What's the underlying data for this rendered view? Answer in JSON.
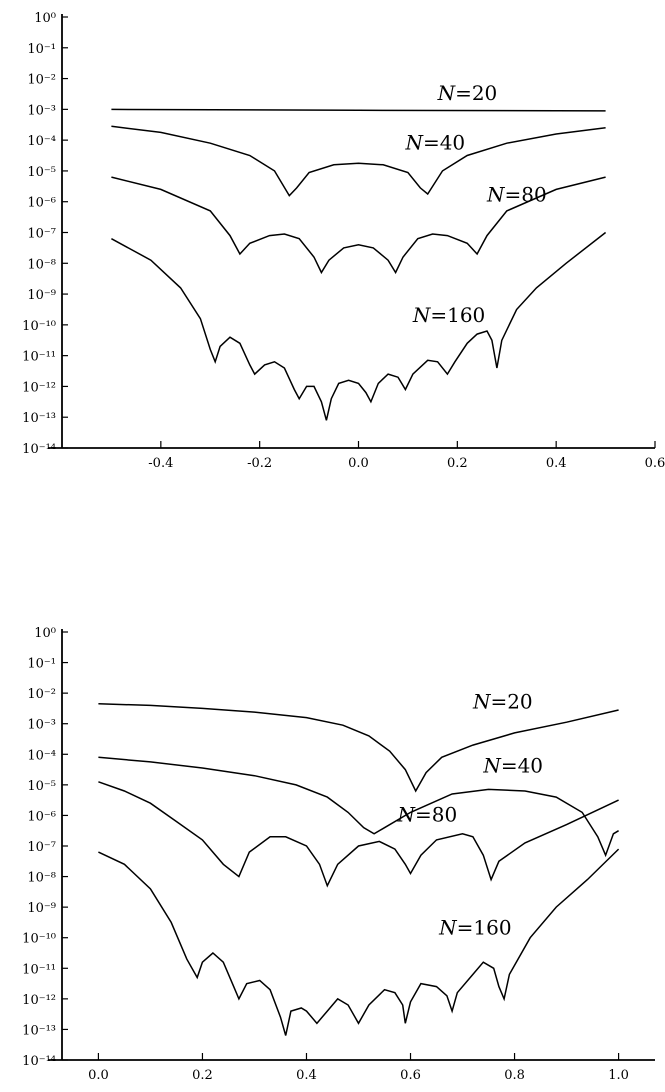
{
  "chart_data": [
    {
      "type": "line",
      "title": "",
      "xlabel": "",
      "ylabel": "",
      "xlim": [
        -0.6,
        0.6
      ],
      "ylim_exp": [
        -14,
        0
      ],
      "y_scale": "log",
      "grid": false,
      "legend": "none (labels placed next to curves)",
      "x_ticks": [
        -0.4,
        -0.2,
        0.0,
        0.2,
        0.4,
        0.6
      ],
      "x_tick_labels": [
        "-0.4",
        "-0.2",
        "0.0",
        "0.2",
        "0.4",
        "0.6"
      ],
      "y_tick_exponents": [
        0,
        -1,
        -2,
        -3,
        -4,
        -5,
        -6,
        -7,
        -8,
        -9,
        -10,
        -11,
        -12,
        -13,
        -14
      ],
      "series": [
        {
          "name": "N=20",
          "label_x": 0.16,
          "label_exp": -2.7,
          "points": [
            [
              -0.5,
              -3.0
            ],
            [
              0.0,
              -3.03
            ],
            [
              0.5,
              -3.05
            ]
          ]
        },
        {
          "name": "N=40",
          "label_x": 0.095,
          "label_exp": -4.3,
          "points": [
            [
              -0.5,
              -3.55
            ],
            [
              -0.4,
              -3.75
            ],
            [
              -0.3,
              -4.1
            ],
            [
              -0.22,
              -4.5
            ],
            [
              -0.17,
              -5.0
            ],
            [
              -0.14,
              -5.8
            ],
            [
              -0.125,
              -5.55
            ],
            [
              -0.1,
              -5.05
            ],
            [
              -0.05,
              -4.8
            ],
            [
              0.0,
              -4.75
            ],
            [
              0.05,
              -4.8
            ],
            [
              0.1,
              -5.05
            ],
            [
              0.125,
              -5.55
            ],
            [
              0.14,
              -5.75
            ],
            [
              0.17,
              -5.0
            ],
            [
              0.22,
              -4.5
            ],
            [
              0.3,
              -4.1
            ],
            [
              0.4,
              -3.8
            ],
            [
              0.5,
              -3.6
            ]
          ]
        },
        {
          "name": "N=80",
          "label_x": 0.26,
          "label_exp": -6.0,
          "points": [
            [
              -0.5,
              -5.2
            ],
            [
              -0.4,
              -5.6
            ],
            [
              -0.3,
              -6.3
            ],
            [
              -0.26,
              -7.1
            ],
            [
              -0.24,
              -7.7
            ],
            [
              -0.22,
              -7.35
            ],
            [
              -0.18,
              -7.1
            ],
            [
              -0.15,
              -7.05
            ],
            [
              -0.12,
              -7.2
            ],
            [
              -0.09,
              -7.8
            ],
            [
              -0.075,
              -8.3
            ],
            [
              -0.06,
              -7.9
            ],
            [
              -0.03,
              -7.5
            ],
            [
              0.0,
              -7.4
            ],
            [
              0.03,
              -7.5
            ],
            [
              0.06,
              -7.9
            ],
            [
              0.075,
              -8.3
            ],
            [
              0.09,
              -7.8
            ],
            [
              0.12,
              -7.2
            ],
            [
              0.15,
              -7.05
            ],
            [
              0.18,
              -7.1
            ],
            [
              0.22,
              -7.35
            ],
            [
              0.24,
              -7.7
            ],
            [
              0.26,
              -7.1
            ],
            [
              0.3,
              -6.3
            ],
            [
              0.4,
              -5.6
            ],
            [
              0.5,
              -5.2
            ]
          ]
        },
        {
          "name": "N=160",
          "label_x": 0.11,
          "label_exp": -9.9,
          "points": [
            [
              -0.5,
              -7.2
            ],
            [
              -0.42,
              -7.9
            ],
            [
              -0.36,
              -8.8
            ],
            [
              -0.32,
              -9.8
            ],
            [
              -0.3,
              -10.8
            ],
            [
              -0.29,
              -11.2
            ],
            [
              -0.28,
              -10.7
            ],
            [
              -0.26,
              -10.4
            ],
            [
              -0.24,
              -10.6
            ],
            [
              -0.22,
              -11.3
            ],
            [
              -0.21,
              -11.6
            ],
            [
              -0.19,
              -11.3
            ],
            [
              -0.17,
              -11.2
            ],
            [
              -0.15,
              -11.4
            ],
            [
              -0.13,
              -12.1
            ],
            [
              -0.12,
              -12.4
            ],
            [
              -0.105,
              -12.0
            ],
            [
              -0.09,
              -12.0
            ],
            [
              -0.075,
              -12.5
            ],
            [
              -0.065,
              -13.1
            ],
            [
              -0.055,
              -12.4
            ],
            [
              -0.04,
              -11.9
            ],
            [
              -0.02,
              -11.8
            ],
            [
              0.0,
              -11.9
            ],
            [
              0.015,
              -12.2
            ],
            [
              0.025,
              -12.5
            ],
            [
              0.04,
              -11.9
            ],
            [
              0.06,
              -11.6
            ],
            [
              0.08,
              -11.7
            ],
            [
              0.095,
              -12.1
            ],
            [
              0.11,
              -11.6
            ],
            [
              0.14,
              -11.15
            ],
            [
              0.16,
              -11.2
            ],
            [
              0.18,
              -11.6
            ],
            [
              0.195,
              -11.2
            ],
            [
              0.22,
              -10.6
            ],
            [
              0.24,
              -10.3
            ],
            [
              0.26,
              -10.2
            ],
            [
              0.27,
              -10.5
            ],
            [
              0.28,
              -11.4
            ],
            [
              0.29,
              -10.5
            ],
            [
              0.32,
              -9.5
            ],
            [
              0.36,
              -8.8
            ],
            [
              0.42,
              -8.0
            ],
            [
              0.5,
              -7.0
            ]
          ]
        }
      ]
    },
    {
      "type": "line",
      "title": "",
      "xlabel": "",
      "ylabel": "",
      "xlim": [
        -0.07,
        1.07
      ],
      "ylim_exp": [
        -14,
        0
      ],
      "y_scale": "log",
      "grid": false,
      "legend": "none (labels placed next to curves)",
      "x_ticks": [
        0.0,
        0.2,
        0.4,
        0.6,
        0.8,
        1.0
      ],
      "x_tick_labels": [
        "0.0",
        "0.2",
        "0.4",
        "0.6",
        "0.8",
        "1.0"
      ],
      "y_tick_exponents": [
        0,
        -1,
        -2,
        -3,
        -4,
        -5,
        -6,
        -7,
        -8,
        -9,
        -10,
        -11,
        -12,
        -13,
        -14
      ],
      "series": [
        {
          "name": "N=20",
          "label_x": 0.72,
          "label_exp": -2.5,
          "points": [
            [
              0.0,
              -2.35
            ],
            [
              0.1,
              -2.4
            ],
            [
              0.2,
              -2.5
            ],
            [
              0.3,
              -2.62
            ],
            [
              0.4,
              -2.8
            ],
            [
              0.47,
              -3.05
            ],
            [
              0.52,
              -3.4
            ],
            [
              0.56,
              -3.9
            ],
            [
              0.59,
              -4.5
            ],
            [
              0.61,
              -5.2
            ],
            [
              0.63,
              -4.6
            ],
            [
              0.66,
              -4.1
            ],
            [
              0.72,
              -3.7
            ],
            [
              0.8,
              -3.3
            ],
            [
              0.9,
              -2.95
            ],
            [
              1.0,
              -2.55
            ]
          ]
        },
        {
          "name": "N=40",
          "label_x": 0.74,
          "label_exp": -4.6,
          "points": [
            [
              0.0,
              -4.1
            ],
            [
              0.1,
              -4.25
            ],
            [
              0.2,
              -4.45
            ],
            [
              0.3,
              -4.7
            ],
            [
              0.38,
              -5.0
            ],
            [
              0.44,
              -5.4
            ],
            [
              0.48,
              -5.9
            ],
            [
              0.51,
              -6.4
            ],
            [
              0.53,
              -6.6
            ],
            [
              0.55,
              -6.4
            ],
            [
              0.6,
              -5.9
            ],
            [
              0.68,
              -5.3
            ],
            [
              0.75,
              -5.15
            ],
            [
              0.82,
              -5.2
            ],
            [
              0.88,
              -5.4
            ],
            [
              0.93,
              -5.9
            ],
            [
              0.96,
              -6.7
            ],
            [
              0.975,
              -7.3
            ],
            [
              0.99,
              -6.6
            ],
            [
              1.0,
              -6.5
            ]
          ]
        },
        {
          "name": "N=80",
          "label_x": 0.575,
          "label_exp": -6.2,
          "points": [
            [
              0.0,
              -4.9
            ],
            [
              0.05,
              -5.2
            ],
            [
              0.1,
              -5.6
            ],
            [
              0.15,
              -6.2
            ],
            [
              0.2,
              -6.8
            ],
            [
              0.24,
              -7.6
            ],
            [
              0.27,
              -8.0
            ],
            [
              0.29,
              -7.2
            ],
            [
              0.33,
              -6.7
            ],
            [
              0.36,
              -6.7
            ],
            [
              0.4,
              -7.0
            ],
            [
              0.425,
              -7.6
            ],
            [
              0.44,
              -8.3
            ],
            [
              0.46,
              -7.6
            ],
            [
              0.5,
              -7.0
            ],
            [
              0.54,
              -6.85
            ],
            [
              0.57,
              -7.1
            ],
            [
              0.59,
              -7.6
            ],
            [
              0.6,
              -7.9
            ],
            [
              0.62,
              -7.3
            ],
            [
              0.65,
              -6.8
            ],
            [
              0.7,
              -6.6
            ],
            [
              0.72,
              -6.7
            ],
            [
              0.74,
              -7.3
            ],
            [
              0.755,
              -8.1
            ],
            [
              0.77,
              -7.5
            ],
            [
              0.82,
              -6.9
            ],
            [
              0.9,
              -6.3
            ],
            [
              1.0,
              -5.5
            ]
          ]
        },
        {
          "name": "N=160",
          "label_x": 0.655,
          "label_exp": -9.9,
          "points": [
            [
              0.0,
              -7.2
            ],
            [
              0.05,
              -7.6
            ],
            [
              0.1,
              -8.4
            ],
            [
              0.14,
              -9.5
            ],
            [
              0.17,
              -10.7
            ],
            [
              0.19,
              -11.3
            ],
            [
              0.2,
              -10.8
            ],
            [
              0.22,
              -10.5
            ],
            [
              0.24,
              -10.8
            ],
            [
              0.26,
              -11.6
            ],
            [
              0.27,
              -12.0
            ],
            [
              0.285,
              -11.5
            ],
            [
              0.31,
              -11.4
            ],
            [
              0.33,
              -11.7
            ],
            [
              0.35,
              -12.6
            ],
            [
              0.36,
              -13.2
            ],
            [
              0.37,
              -12.4
            ],
            [
              0.39,
              -12.3
            ],
            [
              0.4,
              -12.4
            ],
            [
              0.42,
              -12.8
            ],
            [
              0.44,
              -12.4
            ],
            [
              0.46,
              -12.0
            ],
            [
              0.48,
              -12.2
            ],
            [
              0.5,
              -12.8
            ],
            [
              0.52,
              -12.2
            ],
            [
              0.55,
              -11.7
            ],
            [
              0.57,
              -11.8
            ],
            [
              0.585,
              -12.2
            ],
            [
              0.59,
              -12.8
            ],
            [
              0.6,
              -12.1
            ],
            [
              0.62,
              -11.5
            ],
            [
              0.65,
              -11.6
            ],
            [
              0.67,
              -11.9
            ],
            [
              0.68,
              -12.4
            ],
            [
              0.69,
              -11.8
            ],
            [
              0.72,
              -11.2
            ],
            [
              0.74,
              -10.8
            ],
            [
              0.76,
              -11.0
            ],
            [
              0.77,
              -11.6
            ],
            [
              0.78,
              -12.0
            ],
            [
              0.79,
              -11.2
            ],
            [
              0.83,
              -10.0
            ],
            [
              0.88,
              -9.0
            ],
            [
              0.94,
              -8.1
            ],
            [
              1.0,
              -7.1
            ]
          ]
        }
      ]
    }
  ]
}
